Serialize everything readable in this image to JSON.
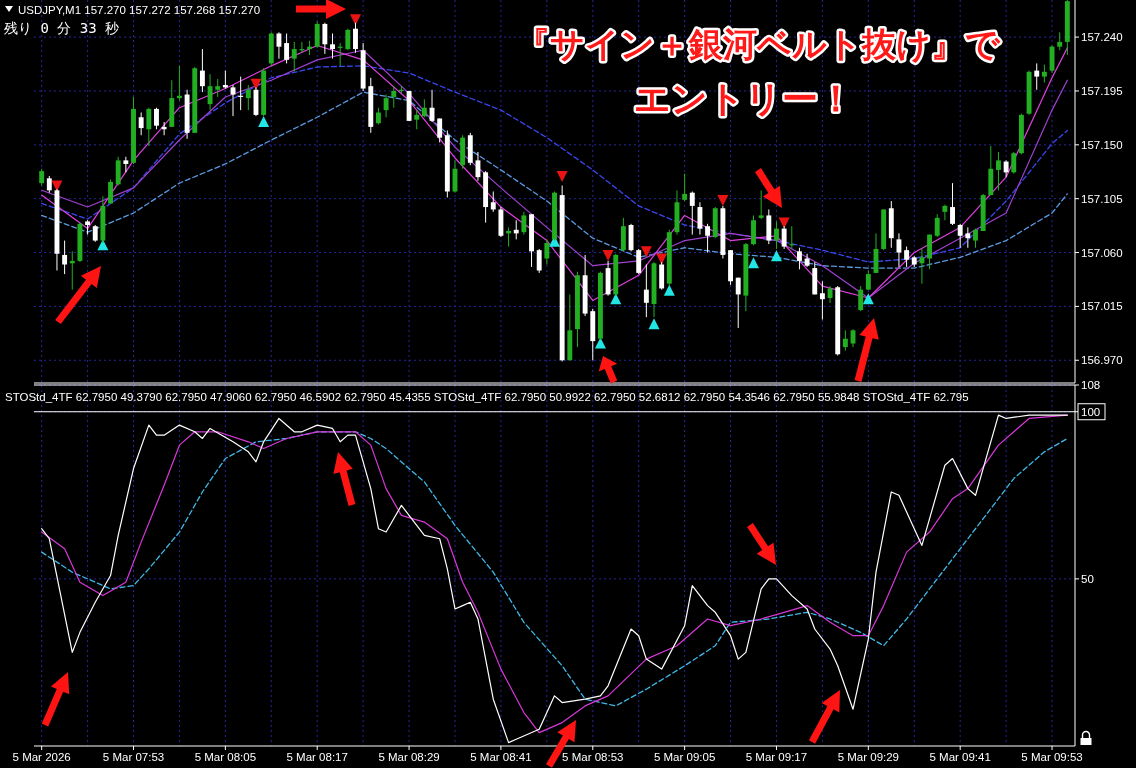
{
  "chart_data": [
    {
      "type": "candlestick",
      "title": "USDJPY,M1 157.270 157.272 157.268 157.270",
      "subtitle": "残り 0 分 33 秒",
      "annotations": [
        "『サイン＋銀河ベルト抜け』で",
        "エントリー！"
      ],
      "x": [
        "2026-03-05T07:41",
        "2026-03-05T07:42",
        "2026-03-05T07:43",
        "2026-03-05T07:44",
        "2026-03-05T07:45",
        "2026-03-05T07:46",
        "2026-03-05T07:47",
        "2026-03-05T07:48",
        "2026-03-05T07:49",
        "2026-03-05T07:50",
        "2026-03-05T07:51",
        "2026-03-05T07:52",
        "2026-03-05T07:53",
        "2026-03-05T07:54",
        "2026-03-05T07:55",
        "2026-03-05T07:56",
        "2026-03-05T07:57",
        "2026-03-05T07:58",
        "2026-03-05T07:59",
        "2026-03-05T08:00",
        "2026-03-05T08:01",
        "2026-03-05T08:02",
        "2026-03-05T08:03",
        "2026-03-05T08:04",
        "2026-03-05T08:05",
        "2026-03-05T08:06",
        "2026-03-05T08:07",
        "2026-03-05T08:08",
        "2026-03-05T08:09",
        "2026-03-05T08:10",
        "2026-03-05T08:11",
        "2026-03-05T08:12",
        "2026-03-05T08:13",
        "2026-03-05T08:14",
        "2026-03-05T08:15",
        "2026-03-05T08:16",
        "2026-03-05T08:17",
        "2026-03-05T08:18",
        "2026-03-05T08:19",
        "2026-03-05T08:20",
        "2026-03-05T08:21",
        "2026-03-05T08:22",
        "2026-03-05T08:23",
        "2026-03-05T08:24",
        "2026-03-05T08:25",
        "2026-03-05T08:26",
        "2026-03-05T08:27",
        "2026-03-05T08:28",
        "2026-03-05T08:29",
        "2026-03-05T08:30",
        "2026-03-05T08:31",
        "2026-03-05T08:32",
        "2026-03-05T08:33",
        "2026-03-05T08:34",
        "2026-03-05T08:35",
        "2026-03-05T08:36",
        "2026-03-05T08:37",
        "2026-03-05T08:38",
        "2026-03-05T08:39",
        "2026-03-05T08:40",
        "2026-03-05T08:41",
        "2026-03-05T08:42",
        "2026-03-05T08:43",
        "2026-03-05T08:44",
        "2026-03-05T08:45",
        "2026-03-05T08:46",
        "2026-03-05T08:47",
        "2026-03-05T08:48",
        "2026-03-05T08:49",
        "2026-03-05T08:50",
        "2026-03-05T08:51",
        "2026-03-05T08:52",
        "2026-03-05T08:53",
        "2026-03-05T08:54",
        "2026-03-05T08:55",
        "2026-03-05T08:56",
        "2026-03-05T08:57",
        "2026-03-05T08:58",
        "2026-03-05T08:59",
        "2026-03-05T09:00",
        "2026-03-05T09:01",
        "2026-03-05T09:02",
        "2026-03-05T09:03",
        "2026-03-05T09:04",
        "2026-03-05T09:05",
        "2026-03-05T09:06",
        "2026-03-05T09:07",
        "2026-03-05T09:08",
        "2026-03-05T09:09",
        "2026-03-05T09:10",
        "2026-03-05T09:11",
        "2026-03-05T09:12",
        "2026-03-05T09:13",
        "2026-03-05T09:14",
        "2026-03-05T09:15",
        "2026-03-05T09:16",
        "2026-03-05T09:17",
        "2026-03-05T09:18",
        "2026-03-05T09:19",
        "2026-03-05T09:20",
        "2026-03-05T09:21",
        "2026-03-05T09:22",
        "2026-03-05T09:23",
        "2026-03-05T09:24",
        "2026-03-05T09:25",
        "2026-03-05T09:26",
        "2026-03-05T09:27",
        "2026-03-05T09:28",
        "2026-03-05T09:29",
        "2026-03-05T09:30",
        "2026-03-05T09:31",
        "2026-03-05T09:32",
        "2026-03-05T09:33",
        "2026-03-05T09:34",
        "2026-03-05T09:35",
        "2026-03-05T09:36",
        "2026-03-05T09:37",
        "2026-03-05T09:38",
        "2026-03-05T09:39",
        "2026-03-05T09:40",
        "2026-03-05T09:41",
        "2026-03-05T09:42",
        "2026-03-05T09:43",
        "2026-03-05T09:44",
        "2026-03-05T09:45",
        "2026-03-05T09:46",
        "2026-03-05T09:47",
        "2026-03-05T09:48",
        "2026-03-05T09:49",
        "2026-03-05T09:50",
        "2026-03-05T09:51",
        "2026-03-05T09:52",
        "2026-03-05T09:53",
        "2026-03-05T09:54",
        "2026-03-05T09:55"
      ],
      "ohlc": [
        [
          157.118,
          157.13,
          157.116,
          157.128
        ],
        [
          157.122,
          157.124,
          157.11,
          157.112
        ],
        [
          157.112,
          157.113,
          157.045,
          157.059
        ],
        [
          157.058,
          157.07,
          157.042,
          157.05
        ],
        [
          157.051,
          157.061,
          157.029,
          157.053
        ],
        [
          157.053,
          157.085,
          157.052,
          157.084
        ],
        [
          157.086,
          157.087,
          157.075,
          157.083
        ],
        [
          157.082,
          157.083,
          157.069,
          157.07
        ],
        [
          157.07,
          157.107,
          157.068,
          157.099
        ],
        [
          157.101,
          157.121,
          157.101,
          157.119
        ],
        [
          157.117,
          157.14,
          157.116,
          157.137
        ],
        [
          157.137,
          157.14,
          157.127,
          157.134
        ],
        [
          157.135,
          157.19,
          157.134,
          157.18
        ],
        [
          157.173,
          157.177,
          157.158,
          157.164
        ],
        [
          157.163,
          157.181,
          157.149,
          157.18
        ],
        [
          157.18,
          157.181,
          157.163,
          157.166
        ],
        [
          157.165,
          157.169,
          157.158,
          157.163
        ],
        [
          157.165,
          157.204,
          157.165,
          157.189
        ],
        [
          157.189,
          157.216,
          157.187,
          157.191
        ],
        [
          157.192,
          157.196,
          157.155,
          157.16
        ],
        [
          157.16,
          157.215,
          157.16,
          157.214
        ],
        [
          157.212,
          157.23,
          157.194,
          157.199
        ],
        [
          157.184,
          157.209,
          157.179,
          157.199
        ],
        [
          157.196,
          157.205,
          157.19,
          157.199
        ],
        [
          157.2,
          157.212,
          157.197,
          157.198
        ],
        [
          157.198,
          157.2,
          157.174,
          157.192
        ],
        [
          157.191,
          157.207,
          157.179,
          157.19
        ],
        [
          157.189,
          157.2,
          157.179,
          157.196
        ],
        [
          157.196,
          157.198,
          157.174,
          157.175
        ],
        [
          157.175,
          157.214,
          157.174,
          157.212
        ],
        [
          157.218,
          157.244,
          157.216,
          157.243
        ],
        [
          157.243,
          157.244,
          157.222,
          157.232
        ],
        [
          157.235,
          157.243,
          157.218,
          157.221
        ],
        [
          157.222,
          157.236,
          157.211,
          157.23
        ],
        [
          157.229,
          157.236,
          157.227,
          157.23
        ],
        [
          157.23,
          157.237,
          157.225,
          157.232
        ],
        [
          157.232,
          157.253,
          157.231,
          157.251
        ],
        [
          157.251,
          157.252,
          157.226,
          157.234
        ],
        [
          157.234,
          157.243,
          157.222,
          157.23
        ],
        [
          157.231,
          157.235,
          157.216,
          157.232
        ],
        [
          157.23,
          157.247,
          157.229,
          157.246
        ],
        [
          157.247,
          157.252,
          157.227,
          157.23
        ],
        [
          157.229,
          157.235,
          157.195,
          157.197
        ],
        [
          157.199,
          157.206,
          157.16,
          157.165
        ],
        [
          157.168,
          157.181,
          157.167,
          157.177
        ],
        [
          157.179,
          157.192,
          157.173,
          157.189
        ],
        [
          157.19,
          157.199,
          157.181,
          157.195
        ],
        [
          157.195,
          157.199,
          157.193,
          157.196
        ],
        [
          157.195,
          157.195,
          157.17,
          157.17
        ],
        [
          157.171,
          157.179,
          157.163,
          157.175
        ],
        [
          157.174,
          157.188,
          157.173,
          157.181
        ],
        [
          157.181,
          157.196,
          157.169,
          157.17
        ],
        [
          157.172,
          157.172,
          157.152,
          157.156
        ],
        [
          157.158,
          157.162,
          157.106,
          157.111
        ],
        [
          157.111,
          157.137,
          157.11,
          157.13
        ],
        [
          157.133,
          157.158,
          157.13,
          157.156
        ],
        [
          157.158,
          157.16,
          157.133,
          157.135
        ],
        [
          157.137,
          157.144,
          157.12,
          157.123
        ],
        [
          157.127,
          157.128,
          157.085,
          157.098
        ],
        [
          157.102,
          157.111,
          157.094,
          157.096
        ],
        [
          157.096,
          157.098,
          157.073,
          157.074
        ],
        [
          157.076,
          157.081,
          157.065,
          157.078
        ],
        [
          157.079,
          157.087,
          157.071,
          157.076
        ],
        [
          157.077,
          157.094,
          157.075,
          157.091
        ],
        [
          157.092,
          157.092,
          157.048,
          157.061
        ],
        [
          157.062,
          157.063,
          157.043,
          157.045
        ],
        [
          157.055,
          157.071,
          157.05,
          157.068
        ],
        [
          157.071,
          157.111,
          157.07,
          157.11
        ],
        [
          157.108,
          157.116,
          156.969,
          156.97
        ],
        [
          156.97,
          157.025,
          156.97,
          156.995
        ],
        [
          156.996,
          157.044,
          156.981,
          157.041
        ],
        [
          157.041,
          157.058,
          157.007,
          157.009
        ],
        [
          157.011,
          157.013,
          156.97,
          156.986
        ],
        [
          156.988,
          157.044,
          156.987,
          157.043
        ],
        [
          157.047,
          157.053,
          157.024,
          157.025
        ],
        [
          157.025,
          157.059,
          157.024,
          157.058
        ],
        [
          157.062,
          157.089,
          157.061,
          157.082
        ],
        [
          157.083,
          157.084,
          157.061,
          157.062
        ],
        [
          157.062,
          157.063,
          157.042,
          157.043
        ],
        [
          157.029,
          157.05,
          157.006,
          157.018
        ],
        [
          157.017,
          157.052,
          157.006,
          157.051
        ],
        [
          157.05,
          157.052,
          157.029,
          157.03
        ],
        [
          157.034,
          157.079,
          157.032,
          157.077
        ],
        [
          157.077,
          157.112,
          157.075,
          157.102
        ],
        [
          157.104,
          157.126,
          157.103,
          157.109
        ],
        [
          157.11,
          157.111,
          157.075,
          157.099
        ],
        [
          157.098,
          157.102,
          157.075,
          157.08
        ],
        [
          157.082,
          157.084,
          157.06,
          157.074
        ],
        [
          157.073,
          157.098,
          157.072,
          157.097
        ],
        [
          157.097,
          157.099,
          157.055,
          157.058
        ],
        [
          157.062,
          157.062,
          157.033,
          157.036
        ],
        [
          157.039,
          157.039,
          156.997,
          157.025
        ],
        [
          157.024,
          157.068,
          157.011,
          157.067
        ],
        [
          157.067,
          157.091,
          157.066,
          157.087
        ],
        [
          157.089,
          157.112,
          157.088,
          157.091
        ],
        [
          157.091,
          157.096,
          157.067,
          157.07
        ],
        [
          157.07,
          157.086,
          157.063,
          157.08
        ],
        [
          157.08,
          157.082,
          157.063,
          157.065
        ],
        [
          157.066,
          157.082,
          157.063,
          157.067
        ],
        [
          157.061,
          157.064,
          157.046,
          157.053
        ],
        [
          157.055,
          157.059,
          157.048,
          157.049
        ],
        [
          157.047,
          157.052,
          157.025,
          157.025
        ],
        [
          157.026,
          157.036,
          157.004,
          157.021
        ],
        [
          157.022,
          157.032,
          157.018,
          157.03
        ],
        [
          157.031,
          157.032,
          156.974,
          156.975
        ],
        [
          156.981,
          156.995,
          156.978,
          156.988
        ],
        [
          156.984,
          156.996,
          156.981,
          156.995
        ],
        [
          157.012,
          157.032,
          157.011,
          157.029
        ],
        [
          157.029,
          157.045,
          157.029,
          157.042
        ],
        [
          157.043,
          157.076,
          157.043,
          157.063
        ],
        [
          157.063,
          157.096,
          157.062,
          157.096
        ],
        [
          157.097,
          157.103,
          157.064,
          157.072
        ],
        [
          157.071,
          157.076,
          157.048,
          157.06
        ],
        [
          157.062,
          157.065,
          157.048,
          157.054
        ],
        [
          157.056,
          157.057,
          157.048,
          157.05
        ],
        [
          157.051,
          157.063,
          157.034,
          157.056
        ],
        [
          157.055,
          157.075,
          157.046,
          157.075
        ],
        [
          157.074,
          157.092,
          157.073,
          157.089
        ],
        [
          157.094,
          157.1,
          157.087,
          157.099
        ],
        [
          157.098,
          157.118,
          157.083,
          157.084
        ],
        [
          157.083,
          157.084,
          157.064,
          157.074
        ],
        [
          157.076,
          157.081,
          157.064,
          157.072
        ],
        [
          157.07,
          157.08,
          157.064,
          157.079
        ],
        [
          157.078,
          157.109,
          157.078,
          157.108
        ],
        [
          157.108,
          157.149,
          157.108,
          157.13
        ],
        [
          157.129,
          157.144,
          157.112,
          157.137
        ],
        [
          157.136,
          157.137,
          157.123,
          157.127
        ],
        [
          157.127,
          157.144,
          157.126,
          157.143
        ],
        [
          157.143,
          157.176,
          157.142,
          157.175
        ],
        [
          157.176,
          157.212,
          157.175,
          157.211
        ],
        [
          157.212,
          157.218,
          157.196,
          157.207
        ],
        [
          157.207,
          157.217,
          157.202,
          157.211
        ],
        [
          157.212,
          157.233,
          157.21,
          157.232
        ],
        [
          157.232,
          157.244,
          157.229,
          157.236
        ],
        [
          157.236,
          157.271,
          157.225,
          157.27
        ]
      ],
      "colors": [
        "#22b022",
        "#ffffff",
        "#ffffff",
        "#ffffff",
        "#22b022",
        "#22b022",
        "#ffffff",
        "#ffffff",
        "#22b022",
        "#22b022",
        "#22b022",
        "#ffffff",
        "#22b022",
        "#ffffff",
        "#22b022",
        "#ffffff",
        "#ffffff",
        "#22b022",
        "#22b022",
        "#ffffff",
        "#22b022",
        "#ffffff",
        "#22b022",
        "#22b022",
        "#ffffff",
        "#ffffff",
        "#ffffff",
        "#22b022",
        "#ffffff",
        "#22b022",
        "#22b022",
        "#ffffff",
        "#ffffff",
        "#22b022",
        "#22b022",
        "#22b022",
        "#22b022",
        "#ffffff",
        "#ffffff",
        "#22b022",
        "#22b022",
        "#ffffff",
        "#ffffff",
        "#ffffff",
        "#22b022",
        "#22b022",
        "#22b022",
        "#22b022",
        "#ffffff",
        "#22b022",
        "#22b022",
        "#ffffff",
        "#ffffff",
        "#ffffff",
        "#22b022",
        "#22b022",
        "#ffffff",
        "#ffffff",
        "#ffffff",
        "#ffffff",
        "#ffffff",
        "#22b022",
        "#ffffff",
        "#22b022",
        "#ffffff",
        "#ffffff",
        "#22b022",
        "#22b022",
        "#ffffff",
        "#22b022",
        "#22b022",
        "#ffffff",
        "#ffffff",
        "#22b022",
        "#ffffff",
        "#22b022",
        "#22b022",
        "#ffffff",
        "#ffffff",
        "#ffffff",
        "#22b022",
        "#ffffff",
        "#22b022",
        "#22b022",
        "#22b022",
        "#ffffff",
        "#ffffff",
        "#ffffff",
        "#22b022",
        "#ffffff",
        "#ffffff",
        "#ffffff",
        "#22b022",
        "#22b022",
        "#22b022",
        "#ffffff",
        "#22b022",
        "#ffffff",
        "#22b022",
        "#ffffff",
        "#ffffff",
        "#ffffff",
        "#ffffff",
        "#22b022",
        "#ffffff",
        "#22b022",
        "#22b022",
        "#22b022",
        "#22b022",
        "#22b022",
        "#22b022",
        "#ffffff",
        "#ffffff",
        "#ffffff",
        "#ffffff",
        "#22b022",
        "#22b022",
        "#22b022",
        "#22b022",
        "#ffffff",
        "#ffffff",
        "#ffffff",
        "#22b022",
        "#22b022",
        "#22b022",
        "#22b022",
        "#ffffff",
        "#22b022",
        "#22b022",
        "#22b022",
        "#ffffff",
        "#22b022",
        "#22b022",
        "#22b022",
        "#22b022"
      ],
      "series": [
        {
          "type": "line",
          "color": "#3a46f0",
          "line_style": "dashed",
          "x": [
            "2026-03-05T07:41",
            "2026-03-05T07:47",
            "2026-03-05T07:53",
            "2026-03-05T07:59",
            "2026-03-05T08:05",
            "2026-03-05T08:11",
            "2026-03-05T08:17",
            "2026-03-05T08:23",
            "2026-03-05T08:29",
            "2026-03-05T08:35",
            "2026-03-05T08:41",
            "2026-03-05T08:47",
            "2026-03-05T08:53",
            "2026-03-05T08:59",
            "2026-03-05T09:05",
            "2026-03-05T09:11",
            "2026-03-05T09:17",
            "2026-03-05T09:23",
            "2026-03-05T09:29",
            "2026-03-05T09:35",
            "2026-03-05T09:41",
            "2026-03-05T09:47",
            "2026-03-05T09:53",
            "2026-03-05T09:55"
          ],
          "values": [
            157.101,
            157.088,
            157.114,
            157.159,
            157.185,
            157.206,
            157.215,
            157.216,
            157.21,
            157.194,
            157.179,
            157.156,
            157.129,
            157.099,
            157.083,
            157.076,
            157.07,
            157.062,
            157.052,
            157.055,
            157.064,
            157.103,
            157.151,
            157.162
          ]
        },
        {
          "type": "line",
          "color": "#5a9ae0",
          "line_style": "dashed",
          "x": [
            "2026-03-05T07:41",
            "2026-03-05T07:47",
            "2026-03-05T07:53",
            "2026-03-05T07:59",
            "2026-03-05T08:05",
            "2026-03-05T08:11",
            "2026-03-05T08:17",
            "2026-03-05T08:23",
            "2026-03-05T08:29",
            "2026-03-05T08:35",
            "2026-03-05T08:41",
            "2026-03-05T08:47",
            "2026-03-05T08:53",
            "2026-03-05T08:59",
            "2026-03-05T09:05",
            "2026-03-05T09:11",
            "2026-03-05T09:17",
            "2026-03-05T09:23",
            "2026-03-05T09:29",
            "2026-03-05T09:35",
            "2026-03-05T09:41",
            "2026-03-05T09:47",
            "2026-03-05T09:53",
            "2026-03-05T09:55"
          ],
          "values": [
            157.091,
            157.077,
            157.093,
            157.118,
            157.134,
            157.154,
            157.173,
            157.194,
            157.187,
            157.154,
            157.129,
            157.103,
            157.072,
            157.056,
            157.064,
            157.059,
            157.056,
            157.049,
            157.047,
            157.047,
            157.056,
            157.07,
            157.093,
            157.109
          ]
        },
        {
          "type": "line",
          "color": "#a040d0",
          "x": [
            "2026-03-05T07:41",
            "2026-03-05T07:47",
            "2026-03-05T07:53",
            "2026-03-05T07:59",
            "2026-03-05T08:05",
            "2026-03-05T08:11",
            "2026-03-05T08:17",
            "2026-03-05T08:23",
            "2026-03-05T08:29",
            "2026-03-05T08:35",
            "2026-03-05T08:41",
            "2026-03-05T08:47",
            "2026-03-05T08:53",
            "2026-03-05T08:59",
            "2026-03-05T09:05",
            "2026-03-05T09:11",
            "2026-03-05T09:17",
            "2026-03-05T09:23",
            "2026-03-05T09:29",
            "2026-03-05T09:35",
            "2026-03-05T09:41",
            "2026-03-05T09:47",
            "2026-03-05T09:53",
            "2026-03-05T09:55"
          ],
          "values": [
            157.112,
            157.098,
            157.114,
            157.154,
            157.19,
            157.204,
            157.221,
            157.229,
            157.193,
            157.148,
            157.114,
            157.081,
            157.049,
            157.053,
            157.07,
            157.076,
            157.07,
            157.049,
            157.022,
            157.051,
            157.072,
            157.093,
            157.179,
            157.204
          ]
        },
        {
          "type": "line",
          "color": "#e040e0",
          "x": [
            "2026-03-05T07:41",
            "2026-03-05T07:47",
            "2026-03-05T07:53",
            "2026-03-05T07:59",
            "2026-03-05T08:05",
            "2026-03-05T08:11",
            "2026-03-05T08:17",
            "2026-03-05T08:23",
            "2026-03-05T08:29",
            "2026-03-05T08:35",
            "2026-03-05T08:41",
            "2026-03-05T08:47",
            "2026-03-05T08:53",
            "2026-03-05T08:59",
            "2026-03-05T09:05",
            "2026-03-05T09:11",
            "2026-03-05T09:17",
            "2026-03-05T09:23",
            "2026-03-05T09:29",
            "2026-03-05T09:35",
            "2026-03-05T09:41",
            "2026-03-05T09:47",
            "2026-03-05T09:53",
            "2026-03-05T09:55"
          ],
          "values": [
            157.108,
            157.08,
            157.137,
            157.181,
            157.197,
            157.216,
            157.233,
            157.221,
            157.187,
            157.139,
            157.098,
            157.07,
            157.02,
            157.041,
            157.091,
            157.07,
            157.074,
            157.032,
            157.022,
            157.06,
            157.081,
            157.123,
            157.206,
            157.231
          ]
        },
        {
          "type": "scatter",
          "color": "#e81414",
          "marker": "triangle",
          "x": [
            "2026-03-05T07:43",
            "2026-03-05T08:09",
            "2026-03-05T08:22",
            "2026-03-05T08:49",
            "2026-03-05T08:55",
            "2026-03-05T09:00",
            "2026-03-05T09:02",
            "2026-03-05T09:10",
            "2026-03-05T09:18"
          ],
          "values": [
            157.116,
            157.201,
            157.255,
            157.124,
            157.058,
            157.061,
            157.055,
            157.104,
            157.085
          ]
        },
        {
          "type": "scatter",
          "color": "#22e6e6",
          "marker": "triangle",
          "x": [
            "2026-03-05T07:49",
            "2026-03-05T08:10",
            "2026-03-05T08:48",
            "2026-03-05T08:54",
            "2026-03-05T08:56",
            "2026-03-05T09:01",
            "2026-03-05T09:03",
            "2026-03-05T09:14",
            "2026-03-05T09:17",
            "2026-03-05T09:29"
          ],
          "values": [
            157.066,
            157.169,
            157.069,
            156.984,
            157.021,
            157.0,
            157.028,
            157.051,
            157.057,
            157.021
          ]
        }
      ],
      "xlim": [
        "2026-03-05T07:40",
        "2026-03-05T09:56"
      ],
      "ylim": [
        156.951,
        157.271
      ],
      "xticks": [
        "2026-03-05T07:41",
        "2026-03-05T07:47",
        "2026-03-05T07:53",
        "2026-03-05T07:59",
        "2026-03-05T08:05",
        "2026-03-05T08:11",
        "2026-03-05T08:17",
        "2026-03-05T08:23",
        "2026-03-05T08:29",
        "2026-03-05T08:35",
        "2026-03-05T08:41",
        "2026-03-05T08:47",
        "2026-03-05T08:53",
        "2026-03-05T08:59",
        "2026-03-05T09:05",
        "2026-03-05T09:11",
        "2026-03-05T09:17",
        "2026-03-05T09:23",
        "2026-03-05T09:29",
        "2026-03-05T09:35",
        "2026-03-05T09:41",
        "2026-03-05T09:47",
        "2026-03-05T09:53"
      ],
      "yticks": [
        {
          "value": 156.97,
          "label": "156.970"
        },
        {
          "value": 157.015,
          "label": "157.015"
        },
        {
          "value": 157.06,
          "label": "157.060"
        },
        {
          "value": 157.105,
          "label": "157.105"
        },
        {
          "value": 157.15,
          "label": "157.150"
        },
        {
          "value": 157.195,
          "label": "157.195"
        },
        {
          "value": 157.24,
          "label": "157.240"
        }
      ],
      "tick_labels": "y",
      "grid": true
    },
    {
      "type": "line",
      "title": "STOStd_4TF 62.7950 49.3790 62.7950 47.9060 62.7950 46.5902 62.7950 45.4355  STOStd_4TF 62.7950 50.9922 62.7950 52.6812 62.7950 54.3546 62.7950 55.9848  STOStd_4TF 62.795",
      "series": [
        {
          "color": "#40b8e8",
          "line_style": "dashed",
          "x": [
            "2026-03-05T07:41",
            "2026-03-05T07:45",
            "2026-03-05T07:50",
            "2026-03-05T07:53",
            "2026-03-05T07:55",
            "2026-03-05T07:59",
            "2026-03-05T08:02",
            "2026-03-05T08:05",
            "2026-03-05T08:09",
            "2026-03-05T08:13",
            "2026-03-05T08:17",
            "2026-03-05T08:22",
            "2026-03-05T08:24",
            "2026-03-05T08:26",
            "2026-03-05T08:31",
            "2026-03-05T08:35",
            "2026-03-05T08:40",
            "2026-03-05T08:44",
            "2026-03-05T08:49",
            "2026-03-05T08:52",
            "2026-03-05T08:56",
            "2026-03-05T09:00",
            "2026-03-05T09:05",
            "2026-03-05T09:09",
            "2026-03-05T09:11",
            "2026-03-05T09:16",
            "2026-03-05T09:21",
            "2026-03-05T09:24",
            "2026-03-05T09:28",
            "2026-03-05T09:31",
            "2026-03-05T09:34",
            "2026-03-05T09:39",
            "2026-03-05T09:44",
            "2026-03-05T09:48",
            "2026-03-05T09:52",
            "2026-03-05T09:55"
          ],
          "values": [
            58,
            52,
            47,
            48,
            53,
            64,
            76,
            86,
            91,
            92,
            94,
            94,
            92,
            89,
            79,
            66,
            52,
            37,
            24,
            14,
            12,
            17,
            24,
            30,
            37,
            38,
            40,
            38,
            34,
            30,
            38,
            53,
            68,
            80,
            88,
            92
          ]
        },
        {
          "color": "#d838d8",
          "x": [
            "2026-03-05T07:41",
            "2026-03-05T07:44",
            "2026-03-05T07:46",
            "2026-03-05T07:49",
            "2026-03-05T07:52",
            "2026-03-05T07:54",
            "2026-03-05T07:57",
            "2026-03-05T07:59",
            "2026-03-05T08:01",
            "2026-03-05T08:04",
            "2026-03-05T08:08",
            "2026-03-05T08:10",
            "2026-03-05T08:13",
            "2026-03-05T08:17",
            "2026-03-05T08:22",
            "2026-03-05T08:24",
            "2026-03-05T08:26",
            "2026-03-05T08:28",
            "2026-03-05T08:31",
            "2026-03-05T08:34",
            "2026-03-05T08:36",
            "2026-03-05T08:38",
            "2026-03-05T08:41",
            "2026-03-05T08:44",
            "2026-03-05T08:46",
            "2026-03-05T08:49",
            "2026-03-05T08:52",
            "2026-03-05T08:55",
            "2026-03-05T09:00",
            "2026-03-05T09:04",
            "2026-03-05T09:08",
            "2026-03-05T09:11",
            "2026-03-05T09:15",
            "2026-03-05T09:18",
            "2026-03-05T09:21",
            "2026-03-05T09:24",
            "2026-03-05T09:27",
            "2026-03-05T09:29",
            "2026-03-05T09:31",
            "2026-03-05T09:34",
            "2026-03-05T09:37",
            "2026-03-05T09:40",
            "2026-03-05T09:42",
            "2026-03-05T09:46",
            "2026-03-05T09:50",
            "2026-03-05T09:55"
          ],
          "values": [
            64,
            59,
            49,
            45,
            49,
            61,
            78,
            90,
            94,
            94,
            91,
            89,
            92,
            94,
            94,
            90,
            77,
            69,
            67,
            62,
            49,
            40,
            23,
            10,
            4,
            7,
            12,
            15,
            26,
            30,
            38,
            36,
            38,
            40,
            42,
            37,
            33,
            33,
            42,
            58,
            64,
            74,
            77,
            90,
            98,
            99
          ]
        },
        {
          "color": "#ffffff",
          "x": [
            "2026-03-05T07:41",
            "2026-03-05T07:42",
            "2026-03-05T07:45",
            "2026-03-05T07:46",
            "2026-03-05T07:48",
            "2026-03-05T07:50",
            "2026-03-05T07:51",
            "2026-03-05T07:53",
            "2026-03-05T07:55",
            "2026-03-05T07:56",
            "2026-03-05T07:57",
            "2026-03-05T07:59",
            "2026-03-05T08:01",
            "2026-03-05T08:02",
            "2026-03-05T08:03",
            "2026-03-05T08:06",
            "2026-03-05T08:08",
            "2026-03-05T08:09",
            "2026-03-05T08:10",
            "2026-03-05T08:12",
            "2026-03-05T08:14",
            "2026-03-05T08:15",
            "2026-03-05T08:17",
            "2026-03-05T08:19",
            "2026-03-05T08:20",
            "2026-03-05T08:21",
            "2026-03-05T08:22",
            "2026-03-05T08:24",
            "2026-03-05T08:25",
            "2026-03-05T08:26",
            "2026-03-05T08:28",
            "2026-03-05T08:29",
            "2026-03-05T08:31",
            "2026-03-05T08:33",
            "2026-03-05T08:34",
            "2026-03-05T08:35",
            "2026-03-05T08:36",
            "2026-03-05T08:37",
            "2026-03-05T08:38",
            "2026-03-05T08:40",
            "2026-03-05T08:42",
            "2026-03-05T08:43",
            "2026-03-05T08:46",
            "2026-03-05T08:48",
            "2026-03-05T08:49",
            "2026-03-05T08:52",
            "2026-03-05T08:54",
            "2026-03-05T08:55",
            "2026-03-05T08:58",
            "2026-03-05T08:59",
            "2026-03-05T09:00",
            "2026-03-05T09:02",
            "2026-03-05T09:05",
            "2026-03-05T09:06",
            "2026-03-05T09:08",
            "2026-03-05T09:09",
            "2026-03-05T09:11",
            "2026-03-05T09:12",
            "2026-03-05T09:13",
            "2026-03-05T09:15",
            "2026-03-05T09:16",
            "2026-03-05T09:17",
            "2026-03-05T09:19",
            "2026-03-05T09:21",
            "2026-03-05T09:22",
            "2026-03-05T09:24",
            "2026-03-05T09:25",
            "2026-03-05T09:27",
            "2026-03-05T09:29",
            "2026-03-05T09:30",
            "2026-03-05T09:32",
            "2026-03-05T09:33",
            "2026-03-05T09:36",
            "2026-03-05T09:39",
            "2026-03-05T09:40",
            "2026-03-05T09:42",
            "2026-03-05T09:43",
            "2026-03-05T09:46",
            "2026-03-05T09:47",
            "2026-03-05T09:50",
            "2026-03-05T09:55"
          ],
          "values": [
            65,
            62,
            28,
            34,
            43,
            51,
            63,
            83,
            96,
            93,
            93,
            96,
            94,
            92,
            95,
            91,
            88,
            85,
            91,
            98,
            94,
            94,
            96,
            95,
            91,
            93,
            93,
            77,
            65,
            64,
            72,
            69,
            63,
            62,
            53,
            41,
            42,
            43,
            38,
            14,
            1,
            2,
            5,
            15,
            13,
            14,
            15,
            18,
            35,
            33,
            26,
            23,
            36,
            48,
            42,
            40,
            33,
            26,
            28,
            47,
            50,
            50,
            45,
            41,
            35,
            29,
            24,
            11,
            32,
            52,
            76,
            75,
            60,
            84,
            86,
            77,
            75,
            99,
            98,
            99,
            99
          ]
        }
      ],
      "xlim": [
        "2026-03-05T07:40",
        "2026-03-05T09:56"
      ],
      "ylim": [
        0,
        108
      ],
      "xticks": [
        {
          "value": "2026-03-05T07:41",
          "label": "5 Mar 2026"
        },
        {
          "value": "2026-03-05T07:47",
          "label": null
        },
        {
          "value": "2026-03-05T07:53",
          "label": "5 Mar 07:53"
        },
        {
          "value": "2026-03-05T07:59",
          "label": null
        },
        {
          "value": "2026-03-05T08:05",
          "label": "5 Mar 08:05"
        },
        {
          "value": "2026-03-05T08:11",
          "label": null
        },
        {
          "value": "2026-03-05T08:17",
          "label": "5 Mar 08:17"
        },
        {
          "value": "2026-03-05T08:23",
          "label": null
        },
        {
          "value": "2026-03-05T08:29",
          "label": "5 Mar 08:29"
        },
        {
          "value": "2026-03-05T08:35",
          "label": null
        },
        {
          "value": "2026-03-05T08:41",
          "label": "5 Mar 08:41"
        },
        {
          "value": "2026-03-05T08:47",
          "label": null
        },
        {
          "value": "2026-03-05T08:53",
          "label": "5 Mar 08:53"
        },
        {
          "value": "2026-03-05T08:59",
          "label": null
        },
        {
          "value": "2026-03-05T09:05",
          "label": "5 Mar 09:05"
        },
        {
          "value": "2026-03-05T09:11",
          "label": null
        },
        {
          "value": "2026-03-05T09:17",
          "label": "5 Mar 09:17"
        },
        {
          "value": "2026-03-05T09:23",
          "label": null
        },
        {
          "value": "2026-03-05T09:29",
          "label": "5 Mar 09:29"
        },
        {
          "value": "2026-03-05T09:35",
          "label": null
        },
        {
          "value": "2026-03-05T09:41",
          "label": "5 Mar 09:41"
        },
        {
          "value": "2026-03-05T09:47",
          "label": null
        },
        {
          "value": "2026-03-05T09:53",
          "label": "5 Mar 09:53"
        }
      ],
      "yticks": [
        50,
        100,
        108
      ],
      "ref_lines": [
        {
          "axis": "y",
          "value": 100,
          "color": "#ffffff"
        }
      ],
      "grid": true
    }
  ]
}
